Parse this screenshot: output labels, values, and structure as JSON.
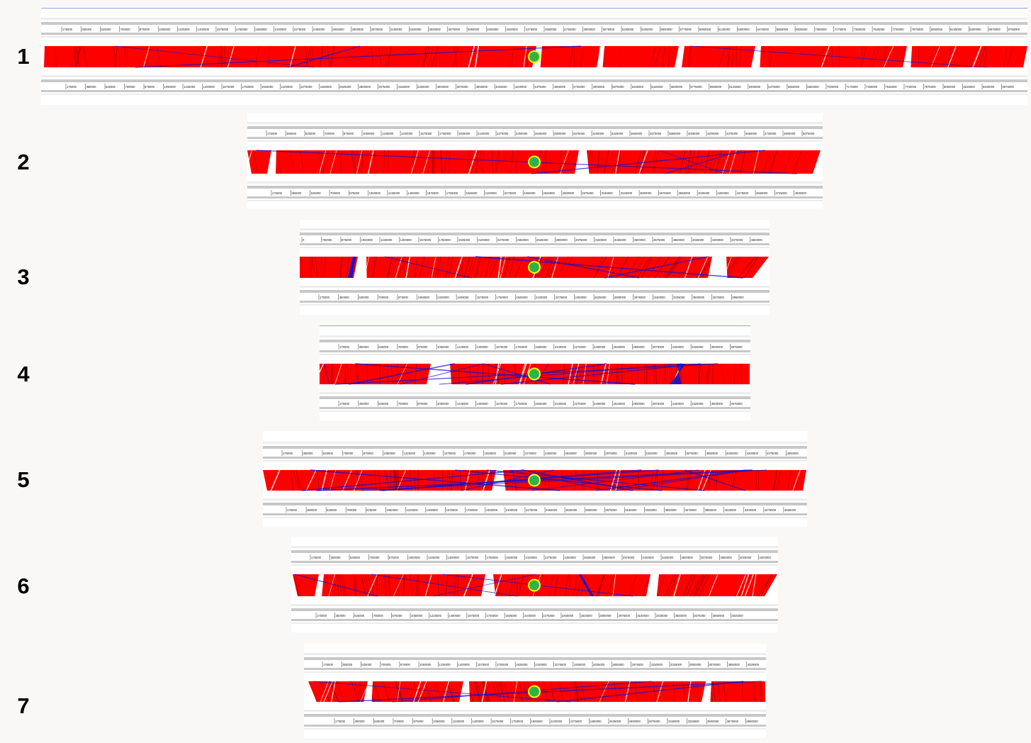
{
  "figure": {
    "colors": {
      "background": "#f9f8f7",
      "forward_match": "#ff0000",
      "inverted_match": "#1010d0",
      "marker_fill": "#2db34a",
      "marker_ring": "#ffff00",
      "track": "#c8c8c8",
      "track_light": "#ededed"
    },
    "marker_icon": "green-circle-marker",
    "panels": [
      {
        "label": "1",
        "top_ticks": [
          "175000",
          "350000",
          "525000",
          "700000",
          "875000",
          "1050000",
          "1225000",
          "1400000",
          "1575000",
          "1750000",
          "1925000",
          "2100000",
          "2275000",
          "2450000",
          "2625000",
          "2800000",
          "2975000",
          "3150000",
          "3325000",
          "3500000",
          "3675000",
          "3850000",
          "4025000",
          "4200000",
          "4375000",
          "4550000",
          "4725000",
          "4900000",
          "5075000",
          "5250000",
          "5425000",
          "5600000",
          "5775000",
          "5950000",
          "6125000",
          "6300000",
          "6475000",
          "6650000",
          "6825000",
          "7000000",
          "7175000",
          "7350000",
          "7525000",
          "7700000",
          "7875000",
          "8050000",
          "8225000",
          "8400000",
          "8575000",
          "8750000"
        ],
        "bottom_ticks": [
          "175000",
          "350000",
          "525000",
          "700000",
          "875000",
          "1050000",
          "1225000",
          "1400000",
          "1575000",
          "1750000",
          "1925000",
          "2100000",
          "2275000",
          "2450000",
          "2625000",
          "2800000",
          "2975000",
          "3150000",
          "3325000",
          "3500000",
          "3675000",
          "3850000",
          "4025000",
          "4200000",
          "4375000",
          "4550000",
          "4725000",
          "4900000",
          "5075000",
          "5250000",
          "5425000",
          "5600000",
          "5775000",
          "5950000",
          "6125000",
          "6300000",
          "6475000",
          "6650000",
          "6825000",
          "7000000",
          "7175000",
          "7350000",
          "7525000",
          "7700000",
          "7875000",
          "8050000",
          "8225000",
          "8400000",
          "8575000"
        ]
      },
      {
        "label": "2",
        "top_ticks": [
          "175000",
          "350000",
          "525000",
          "700000",
          "875000",
          "1050000",
          "1225000",
          "1400000",
          "1575000",
          "1750000",
          "1925000",
          "2100000",
          "2275000",
          "2450000",
          "2625000",
          "2800000",
          "2975000",
          "3150000",
          "3325000",
          "3500000",
          "3675000",
          "3850000",
          "4025000",
          "4200000",
          "4375000",
          "4550000",
          "4725000",
          "4900000",
          "5075000"
        ],
        "bottom_ticks": [
          "175000",
          "350000",
          "525000",
          "700000",
          "875000",
          "1050000",
          "1225000",
          "1400000",
          "1575000",
          "1750000",
          "1925000",
          "2100000",
          "2275000",
          "2450000",
          "2625000",
          "2800000",
          "2975000",
          "3150000",
          "3325000",
          "3500000",
          "3675000",
          "3850000",
          "4025000",
          "4200000",
          "4375000",
          "4550000",
          "4725000",
          "4900000"
        ]
      },
      {
        "label": "3",
        "top_ticks": [
          "0",
          "700000",
          "875000",
          "1050000",
          "1225000",
          "1400000",
          "1575000",
          "1750000",
          "1925000",
          "2100000",
          "2275000",
          "2450000",
          "2625000",
          "2800000",
          "2975000",
          "3150000",
          "3325000",
          "3500000",
          "3675000",
          "3850000",
          "4025000",
          "4200000",
          "4375000",
          "4550000"
        ],
        "bottom_ticks": [
          "175000",
          "350000",
          "525000",
          "700000",
          "875000",
          "1050000",
          "1225000",
          "1400000",
          "1575000",
          "1750000",
          "1925000",
          "2100000",
          "2275000",
          "2450000",
          "2625000",
          "2800000",
          "2975000",
          "3150000",
          "3325000",
          "3500000",
          "3675000",
          "3850000"
        ]
      },
      {
        "label": "4",
        "top_ticks": [
          "175000",
          "350000",
          "525000",
          "700000",
          "875000",
          "1050000",
          "1225000",
          "1400000",
          "1575000",
          "1750000",
          "1925000",
          "2100000",
          "2275000",
          "2450000",
          "2625000",
          "2800000",
          "2975000",
          "3150000",
          "3325000",
          "3500000",
          "3675000"
        ],
        "bottom_ticks": [
          "175000",
          "350000",
          "525000",
          "700000",
          "875000",
          "1050000",
          "1225000",
          "1400000",
          "1575000",
          "1750000",
          "1925000",
          "2100000",
          "2275000",
          "2450000",
          "2625000",
          "2800000",
          "2975000",
          "3150000",
          "3325000",
          "3500000",
          "3675000"
        ]
      },
      {
        "label": "5",
        "top_ticks": [
          "175000",
          "350000",
          "525000",
          "700000",
          "875000",
          "1050000",
          "1225000",
          "1400000",
          "1575000",
          "1750000",
          "1925000",
          "2100000",
          "2275000",
          "2450000",
          "2625000",
          "2800000",
          "2975000",
          "3150000",
          "3325000",
          "3500000",
          "3675000",
          "3850000",
          "4025000",
          "4200000",
          "4375000",
          "4550000"
        ],
        "bottom_ticks": [
          "175000",
          "350000",
          "525000",
          "700000",
          "875000",
          "1050000",
          "1225000",
          "1400000",
          "1575000",
          "1750000",
          "1925000",
          "2100000",
          "2275000",
          "2450000",
          "2625000",
          "2800000",
          "2975000",
          "3150000",
          "3325000",
          "3500000",
          "3675000",
          "3850000",
          "4025000",
          "4200000",
          "4375000",
          "4550000"
        ]
      },
      {
        "label": "6",
        "top_ticks": [
          "175000",
          "350000",
          "525000",
          "700000",
          "875000",
          "1050000",
          "1225000",
          "1400000",
          "1575000",
          "1750000",
          "1925000",
          "2100000",
          "2275000",
          "2450000",
          "2625000",
          "2800000",
          "2975000",
          "3150000",
          "3325000",
          "3500000",
          "3675000",
          "3850000",
          "4025000",
          "4200000"
        ],
        "bottom_ticks": [
          "175000",
          "350000",
          "525000",
          "700000",
          "875000",
          "1050000",
          "1225000",
          "1400000",
          "1575000",
          "1750000",
          "1925000",
          "2100000",
          "2275000",
          "2450000",
          "2625000",
          "2800000",
          "2975000",
          "3150000",
          "3325000",
          "3500000",
          "3675000",
          "3850000",
          "4025000"
        ]
      },
      {
        "label": "7",
        "top_ticks": [
          "175000",
          "350000",
          "525000",
          "700000",
          "875000",
          "1050000",
          "1225000",
          "1400000",
          "1575000",
          "1750000",
          "1925000",
          "2100000",
          "2275000",
          "2450000",
          "2625000",
          "2800000",
          "2975000",
          "3150000",
          "3325000",
          "3500000",
          "3675000",
          "3850000",
          "4025000"
        ],
        "bottom_ticks": [
          "175000",
          "350000",
          "525000",
          "700000",
          "875000",
          "1050000",
          "1225000",
          "1400000",
          "1575000",
          "1750000",
          "1925000",
          "2100000",
          "2275000",
          "2450000",
          "2625000",
          "2800000",
          "2975000",
          "3150000",
          "3325000",
          "3500000",
          "3675000",
          "3850000"
        ]
      }
    ]
  }
}
